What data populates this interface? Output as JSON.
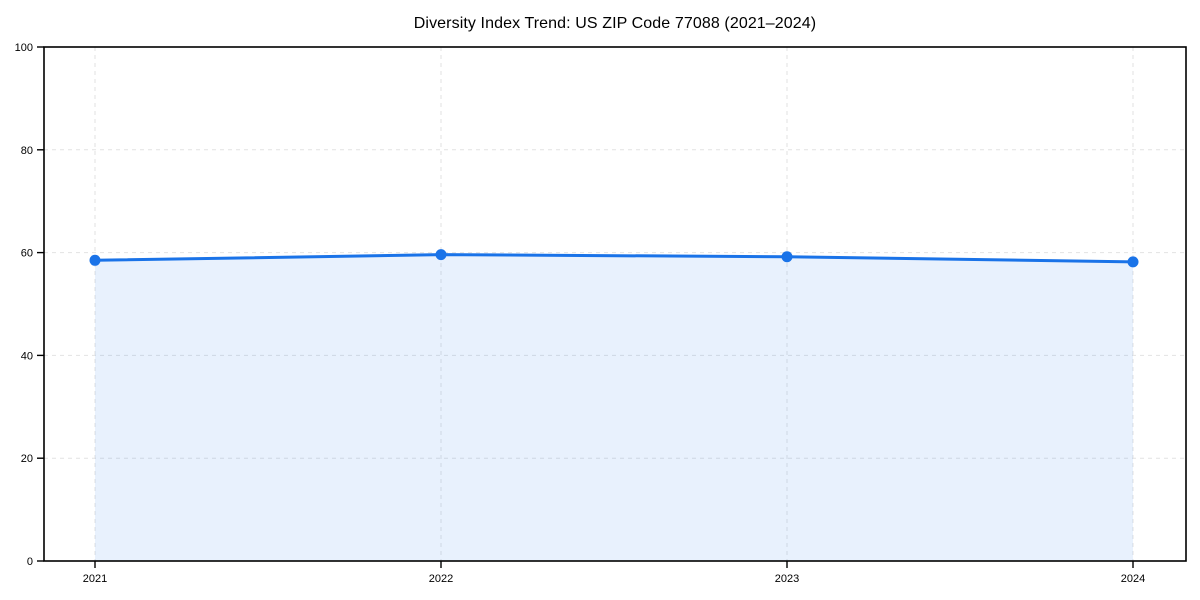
{
  "figure": {
    "background": "#ffffff"
  },
  "chart_data": {
    "type": "area",
    "title": "Diversity Index Trend: US ZIP Code 77088 (2021–2024)",
    "categories": [
      "2021",
      "2022",
      "2023",
      "2024"
    ],
    "series": [
      {
        "name": "Diversity Index",
        "values": [
          58.5,
          59.6,
          59.2,
          58.2
        ]
      }
    ],
    "xlabel": "",
    "ylabel": "",
    "ylim": [
      0,
      100
    ],
    "yticks": [
      0,
      20,
      40,
      60,
      80,
      100
    ],
    "grid": {
      "show": true,
      "style": "dashed",
      "axes": "both"
    },
    "legend": "none",
    "marker": "circle",
    "colors": {
      "line": "#1a73e8",
      "marker": "#1a73e8",
      "fill": "#1a73e8",
      "fill_opacity": 0.1,
      "grid": "#e2e2e2",
      "spine": "#000000",
      "tick_text": "#000000",
      "title_text": "#000000",
      "background": "#ffffff"
    }
  }
}
